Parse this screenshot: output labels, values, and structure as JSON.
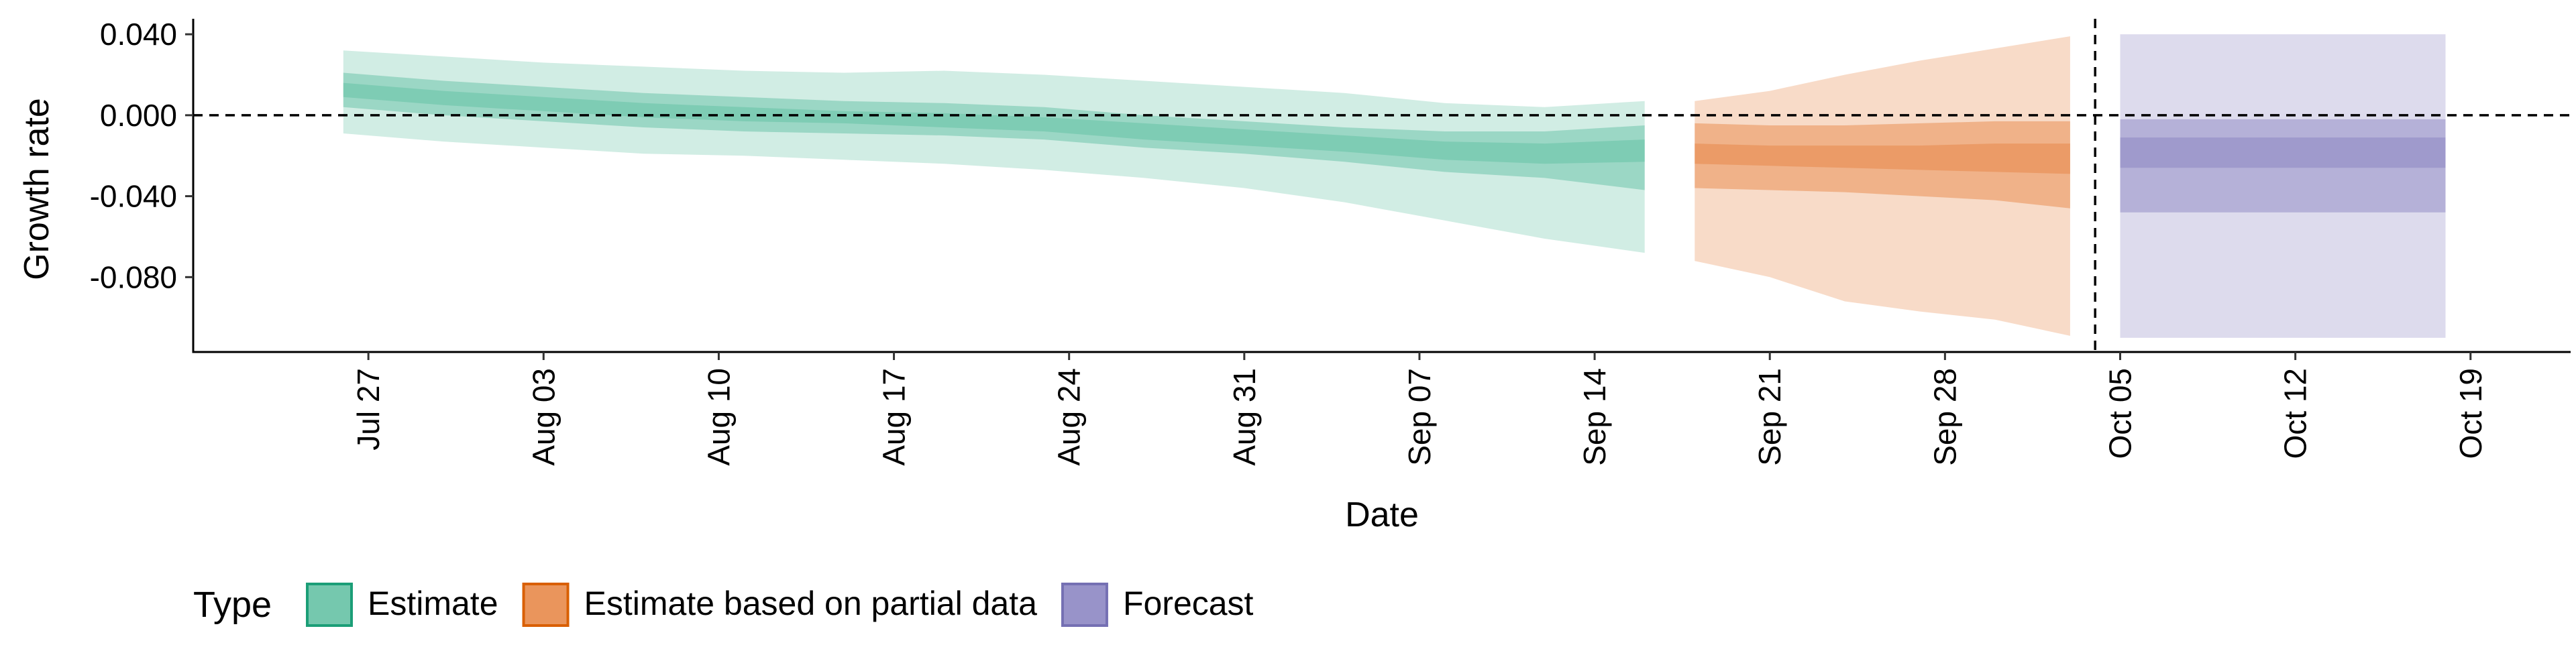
{
  "chart_data": {
    "type": "area",
    "title": "",
    "xlabel": "Date",
    "ylabel": "Growth rate",
    "xlim": [
      "2020-07-20",
      "2020-10-23"
    ],
    "ylim": [
      -0.117,
      0.047
    ],
    "y_ticks": [
      {
        "value": 0.04,
        "label": "0.040"
      },
      {
        "value": 0.0,
        "label": "0.000"
      },
      {
        "value": -0.04,
        "label": "-0.040"
      },
      {
        "value": -0.08,
        "label": "-0.080"
      }
    ],
    "x_ticks": [
      {
        "date": "2020-07-27",
        "label": "Jul 27"
      },
      {
        "date": "2020-08-03",
        "label": "Aug 03"
      },
      {
        "date": "2020-08-10",
        "label": "Aug 10"
      },
      {
        "date": "2020-08-17",
        "label": "Aug 17"
      },
      {
        "date": "2020-08-24",
        "label": "Aug 24"
      },
      {
        "date": "2020-08-31",
        "label": "Aug 31"
      },
      {
        "date": "2020-09-07",
        "label": "Sep 07"
      },
      {
        "date": "2020-09-14",
        "label": "Sep 14"
      },
      {
        "date": "2020-09-21",
        "label": "Sep 21"
      },
      {
        "date": "2020-09-28",
        "label": "Sep 28"
      },
      {
        "date": "2020-10-05",
        "label": "Oct 05"
      },
      {
        "date": "2020-10-12",
        "label": "Oct 12"
      },
      {
        "date": "2020-10-19",
        "label": "Oct 19"
      }
    ],
    "reference_lines": [
      {
        "orientation": "horizontal",
        "value": 0.0,
        "style": "dashed"
      },
      {
        "orientation": "vertical",
        "date": "2020-10-04",
        "style": "dashed"
      }
    ],
    "grid": false,
    "legend": {
      "title": "Type",
      "position": "bottom-left",
      "entries": [
        "Estimate",
        "Estimate based on partial data",
        "Forecast"
      ]
    },
    "colors": {
      "Estimate": "#66c2a5",
      "Estimate based on partial data": "#e8894a",
      "Forecast": "#8d87c3"
    },
    "series": [
      {
        "name": "Estimate",
        "fill": "#66c2a5",
        "border": "#1b9e77",
        "points": [
          {
            "date": "2020-07-26",
            "median": 0.013,
            "q25": [
              0.009,
              0.016
            ],
            "q50": [
              0.004,
              0.021
            ],
            "q90": [
              -0.009,
              0.032
            ]
          },
          {
            "date": "2020-07-30",
            "median": 0.009,
            "q25": [
              0.005,
              0.012
            ],
            "q50": [
              0.0,
              0.017
            ],
            "q90": [
              -0.013,
              0.029
            ]
          },
          {
            "date": "2020-08-03",
            "median": 0.006,
            "q25": [
              0.002,
              0.009
            ],
            "q50": [
              -0.003,
              0.014
            ],
            "q90": [
              -0.016,
              0.026
            ]
          },
          {
            "date": "2020-08-07",
            "median": 0.003,
            "q25": [
              -0.001,
              0.006
            ],
            "q50": [
              -0.006,
              0.011
            ],
            "q90": [
              -0.019,
              0.024
            ]
          },
          {
            "date": "2020-08-11",
            "median": 0.001,
            "q25": [
              -0.003,
              0.004
            ],
            "q50": [
              -0.008,
              0.009
            ],
            "q90": [
              -0.02,
              0.022
            ]
          },
          {
            "date": "2020-08-15",
            "median": -0.001,
            "q25": [
              -0.004,
              0.002
            ],
            "q50": [
              -0.009,
              0.007
            ],
            "q90": [
              -0.022,
              0.021
            ]
          },
          {
            "date": "2020-08-19",
            "median": -0.002,
            "q25": [
              -0.006,
              0.001
            ],
            "q50": [
              -0.01,
              0.006
            ],
            "q90": [
              -0.024,
              0.022
            ]
          },
          {
            "date": "2020-08-23",
            "median": -0.004,
            "q25": [
              -0.008,
              -0.001
            ],
            "q50": [
              -0.012,
              0.004
            ],
            "q90": [
              -0.027,
              0.02
            ]
          },
          {
            "date": "2020-08-27",
            "median": -0.008,
            "q25": [
              -0.012,
              -0.004
            ],
            "q50": [
              -0.016,
              0.0
            ],
            "q90": [
              -0.031,
              0.017
            ]
          },
          {
            "date": "2020-08-31",
            "median": -0.011,
            "q25": [
              -0.015,
              -0.007
            ],
            "q50": [
              -0.019,
              -0.003
            ],
            "q90": [
              -0.036,
              0.014
            ]
          },
          {
            "date": "2020-09-04",
            "median": -0.014,
            "q25": [
              -0.018,
              -0.01
            ],
            "q50": [
              -0.023,
              -0.006
            ],
            "q90": [
              -0.043,
              0.011
            ]
          },
          {
            "date": "2020-09-08",
            "median": -0.018,
            "q25": [
              -0.022,
              -0.013
            ],
            "q50": [
              -0.028,
              -0.008
            ],
            "q90": [
              -0.052,
              0.006
            ]
          },
          {
            "date": "2020-09-12",
            "median": -0.019,
            "q25": [
              -0.024,
              -0.014
            ],
            "q50": [
              -0.031,
              -0.008
            ],
            "q90": [
              -0.061,
              0.004
            ]
          },
          {
            "date": "2020-09-16",
            "median": -0.018,
            "q25": [
              -0.023,
              -0.012
            ],
            "q50": [
              -0.037,
              -0.005
            ],
            "q90": [
              -0.068,
              0.007
            ]
          }
        ]
      },
      {
        "name": "Estimate based on partial data",
        "fill": "#e8894a",
        "border": "#d95f02",
        "points": [
          {
            "date": "2020-09-18",
            "median": -0.019,
            "q25": [
              -0.024,
              -0.014
            ],
            "q50": [
              -0.036,
              -0.004
            ],
            "q90": [
              -0.072,
              0.007
            ]
          },
          {
            "date": "2020-09-21",
            "median": -0.02,
            "q25": [
              -0.025,
              -0.015
            ],
            "q50": [
              -0.037,
              -0.005
            ],
            "q90": [
              -0.08,
              0.012
            ]
          },
          {
            "date": "2020-09-24",
            "median": -0.021,
            "q25": [
              -0.026,
              -0.015
            ],
            "q50": [
              -0.038,
              -0.005
            ],
            "q90": [
              -0.092,
              0.02
            ]
          },
          {
            "date": "2020-09-27",
            "median": -0.021,
            "q25": [
              -0.027,
              -0.015
            ],
            "q50": [
              -0.04,
              -0.004
            ],
            "q90": [
              -0.097,
              0.027
            ]
          },
          {
            "date": "2020-09-30",
            "median": -0.021,
            "q25": [
              -0.028,
              -0.014
            ],
            "q50": [
              -0.042,
              -0.003
            ],
            "q90": [
              -0.101,
              0.033
            ]
          },
          {
            "date": "2020-10-03",
            "median": -0.022,
            "q25": [
              -0.029,
              -0.014
            ],
            "q50": [
              -0.046,
              -0.003
            ],
            "q90": [
              -0.109,
              0.039
            ]
          }
        ]
      },
      {
        "name": "Forecast",
        "fill": "#8d87c3",
        "border": "#7570b3",
        "points": [
          {
            "date": "2020-10-05",
            "median": -0.019,
            "q25": [
              -0.026,
              -0.011
            ],
            "q50": [
              -0.048,
              -0.002
            ],
            "q90": [
              -0.11,
              0.04
            ]
          },
          {
            "date": "2020-10-18",
            "median": -0.019,
            "q25": [
              -0.026,
              -0.011
            ],
            "q50": [
              -0.048,
              -0.002
            ],
            "q90": [
              -0.11,
              0.04
            ]
          }
        ]
      }
    ]
  }
}
